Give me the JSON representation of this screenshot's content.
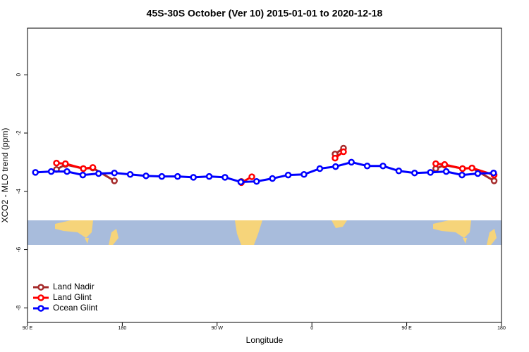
{
  "chart_data": {
    "type": "line",
    "title": "45S-30S October (Ver 10)   2015-01-01 to 2020-12-18",
    "x_label": "Longitude",
    "y_label": "XCO2 - MLO trend (ppm)",
    "xlim": [
      90,
      540
    ],
    "ylim": [
      -8.5,
      1.6
    ],
    "xticks": [
      {
        "value": 90,
        "label": "90 E"
      },
      180,
      {
        "value": 270,
        "label": "90 W"
      },
      {
        "value": 360,
        "label": "0"
      },
      {
        "value": 450,
        "label": "90 E"
      },
      {
        "value": 540,
        "label": "180"
      }
    ],
    "yticks": [
      0,
      -2,
      -4,
      -6,
      -8
    ],
    "legend": "bottom-left",
    "series": [
      {
        "name": "Land Nadir",
        "color": "#a52a2a",
        "x": [
          117.5,
          126,
          143,
          152,
          172.5,
          null,
          293,
          null,
          382,
          390,
          null,
          477.6,
          486,
          503,
          512,
          533
        ],
        "values": [
          -3.25,
          -3.08,
          -3.22,
          -3.2,
          -3.64,
          null,
          -3.66,
          null,
          -2.72,
          -2.52,
          null,
          -3.22,
          -3.1,
          -3.22,
          -3.2,
          -3.64
        ]
      },
      {
        "name": "Land Glint",
        "color": "#ff0000",
        "x": [
          117.5,
          126,
          143,
          152,
          null,
          293,
          303,
          null,
          382,
          390,
          null,
          477.6,
          486,
          503,
          512,
          533
        ],
        "values": [
          -3.03,
          -3.05,
          -3.22,
          -3.18,
          null,
          -3.7,
          -3.5,
          null,
          -2.86,
          -2.64,
          null,
          -3.05,
          -3.08,
          -3.22,
          -3.2,
          -3.44
        ]
      },
      {
        "name": "Ocean Glint",
        "color": "#0000ff",
        "x": [
          97.5,
          112.5,
          127.5,
          142.5,
          157.5,
          172.5,
          187.5,
          202.5,
          217.5,
          232.5,
          247.5,
          262.5,
          277.5,
          292.5,
          307.5,
          322.5,
          337.5,
          352.5,
          367.5,
          382.5,
          397.5,
          412.5,
          427.5,
          442.5,
          457.5,
          472.5,
          487.5,
          502.5,
          517.5,
          532.5
        ],
        "values": [
          -3.35,
          -3.32,
          -3.32,
          -3.44,
          -3.39,
          -3.37,
          -3.42,
          -3.47,
          -3.49,
          -3.49,
          -3.52,
          -3.49,
          -3.52,
          -3.68,
          -3.66,
          -3.56,
          -3.44,
          -3.42,
          -3.22,
          -3.15,
          -3.0,
          -3.13,
          -3.13,
          -3.3,
          -3.37,
          -3.35,
          -3.32,
          -3.44,
          -3.39,
          -3.37
        ]
      }
    ]
  }
}
